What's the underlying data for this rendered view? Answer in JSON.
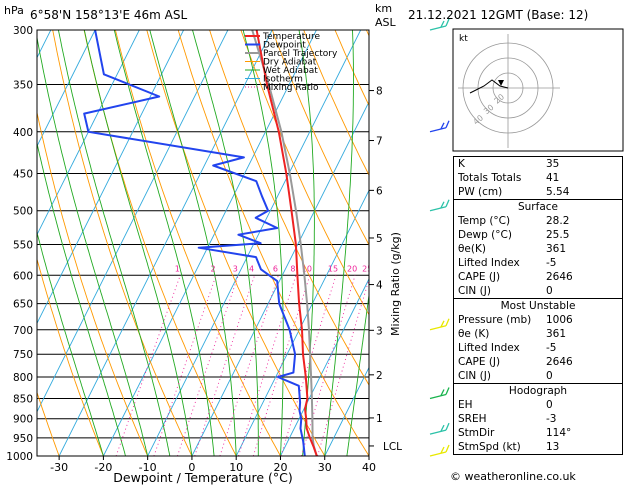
{
  "header": {
    "location": "6°58'N 158°13'E 46m ASL",
    "datetime": "21.12.2021 12GMT (Base: 12)",
    "hpa_unit": "hPa",
    "km_unit": "km",
    "asl": "ASL"
  },
  "chart_data": {
    "type": "skew-t",
    "xlabel": "Dewpoint / Temperature (°C)",
    "ylabel_right": "Mixing Ratio (g/kg)",
    "x_ticks": [
      -30,
      -20,
      -10,
      0,
      10,
      20,
      30,
      40
    ],
    "pressure_ticks": [
      300,
      350,
      400,
      450,
      500,
      550,
      600,
      650,
      700,
      750,
      800,
      850,
      900,
      950,
      1000
    ],
    "pmin": 300,
    "pmax": 1000,
    "xlim": [
      -35,
      40
    ],
    "height_ticks_km": [
      {
        "label": "8",
        "p": 356
      },
      {
        "label": "7",
        "p": 410
      },
      {
        "label": "6",
        "p": 472
      },
      {
        "label": "5",
        "p": 540
      },
      {
        "label": "4",
        "p": 616
      },
      {
        "label": "3",
        "p": 701
      },
      {
        "label": "2",
        "p": 795
      },
      {
        "label": "1",
        "p": 898
      },
      {
        "label": "LCL",
        "p": 972
      }
    ],
    "mixing_ratio_labels": [
      "1",
      "2",
      "3",
      "4",
      "6",
      "8",
      "10",
      "15",
      "20",
      "25"
    ],
    "mixing_ratio_values": [
      1,
      2,
      3,
      4,
      6,
      8,
      10,
      15,
      20,
      25
    ],
    "legend": [
      "Temperature",
      "Dewpoint",
      "Parcel Trajectory",
      "Dry Adiabat",
      "Wet Adiabat",
      "Isotherm",
      "Mixing Ratio"
    ],
    "legend_position": "top",
    "temperature": [
      [
        1000,
        28.2
      ],
      [
        975,
        26.5
      ],
      [
        950,
        24.6
      ],
      [
        925,
        22.8
      ],
      [
        900,
        21.6
      ],
      [
        875,
        20.2
      ],
      [
        850,
        19.6
      ],
      [
        800,
        16.8
      ],
      [
        750,
        13.6
      ],
      [
        700,
        10.6
      ],
      [
        650,
        7.0
      ],
      [
        600,
        3.4
      ],
      [
        550,
        -0.4
      ],
      [
        500,
        -5.2
      ],
      [
        450,
        -10.6
      ],
      [
        400,
        -17.0
      ],
      [
        350,
        -25.0
      ],
      [
        300,
        -33.5
      ]
    ],
    "dewpoint": [
      [
        1000,
        25.5
      ],
      [
        960,
        23.5
      ],
      [
        925,
        21.4
      ],
      [
        900,
        20.5
      ],
      [
        880,
        19.2
      ],
      [
        860,
        18.4
      ],
      [
        820,
        16.2
      ],
      [
        800,
        10.5
      ],
      [
        790,
        13.5
      ],
      [
        750,
        11.8
      ],
      [
        700,
        7.8
      ],
      [
        650,
        2.5
      ],
      [
        610,
        -0.5
      ],
      [
        590,
        -5.5
      ],
      [
        570,
        -8.0
      ],
      [
        555,
        -22.0
      ],
      [
        548,
        -8.5
      ],
      [
        535,
        -14.5
      ],
      [
        525,
        -6.5
      ],
      [
        510,
        -12.5
      ],
      [
        500,
        -10.5
      ],
      [
        480,
        -13.5
      ],
      [
        460,
        -16.5
      ],
      [
        440,
        -28.0
      ],
      [
        430,
        -22.0
      ],
      [
        400,
        -60.0
      ],
      [
        380,
        -63.0
      ],
      [
        362,
        -48.0
      ],
      [
        340,
        -63.0
      ],
      [
        300,
        -70.0
      ]
    ],
    "parcel": [
      [
        1000,
        28.2
      ],
      [
        972,
        26.4
      ],
      [
        950,
        25.2
      ],
      [
        900,
        23.0
      ],
      [
        850,
        20.6
      ],
      [
        800,
        18.0
      ],
      [
        750,
        15.2
      ],
      [
        700,
        12.2
      ],
      [
        650,
        8.8
      ],
      [
        600,
        5.0
      ],
      [
        550,
        0.7
      ],
      [
        500,
        -4.2
      ],
      [
        450,
        -9.8
      ],
      [
        400,
        -16.4
      ],
      [
        350,
        -24.6
      ],
      [
        300,
        -34.5
      ]
    ],
    "wind_barbs": [
      {
        "p": 1000,
        "color": "#e8e800"
      },
      {
        "p": 940,
        "color": "#2cc2a8"
      },
      {
        "p": 850,
        "color": "#19b34d"
      },
      {
        "p": 700,
        "color": "#e8e800"
      },
      {
        "p": 500,
        "color": "#2cc2a8"
      },
      {
        "p": 400,
        "color": "#2244ee"
      },
      {
        "p": 300,
        "color": "#2cc2a8"
      }
    ]
  },
  "hodograph": {
    "label": "kt",
    "ring_labels": [
      "40",
      "30",
      "20"
    ]
  },
  "indices": [
    {
      "label": "K",
      "value": "35"
    },
    {
      "label": "Totals Totals",
      "value": "41"
    },
    {
      "label": "PW (cm)",
      "value": "5.54"
    }
  ],
  "surface": {
    "title": "Surface",
    "rows": [
      {
        "label": "Temp (°C)",
        "value": "28.2"
      },
      {
        "label": "Dewp (°C)",
        "value": "25.5"
      },
      {
        "label": "θe(K)",
        "value": "361"
      },
      {
        "label": "Lifted Index",
        "value": "-5"
      },
      {
        "label": "CAPE (J)",
        "value": "2646"
      },
      {
        "label": "CIN (J)",
        "value": "0"
      }
    ]
  },
  "most_unstable": {
    "title": "Most Unstable",
    "rows": [
      {
        "label": "Pressure (mb)",
        "value": "1006"
      },
      {
        "label": "θe (K)",
        "value": "361"
      },
      {
        "label": "Lifted Index",
        "value": "-5"
      },
      {
        "label": "CAPE (J)",
        "value": "2646"
      },
      {
        "label": "CIN (J)",
        "value": "0"
      }
    ]
  },
  "hodograph_table": {
    "title": "Hodograph",
    "rows": [
      {
        "label": "EH",
        "value": "0"
      },
      {
        "label": "SREH",
        "value": "-3"
      },
      {
        "label": "StmDir",
        "value": "114°"
      },
      {
        "label": "StmSpd (kt)",
        "value": "13"
      }
    ]
  },
  "footer": "© weatheronline.co.uk",
  "colors": {
    "temperature": "#ee2222",
    "dewpoint": "#2244ee",
    "parcel": "#999999",
    "dry_adiabat": "#ff9900",
    "wet_adiabat": "#22aa22",
    "isotherm": "#33aadd",
    "mixing_ratio": "#ee2299"
  }
}
